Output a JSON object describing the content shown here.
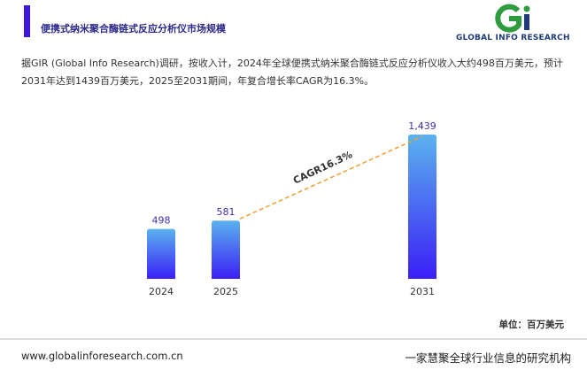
{
  "logo": "GLOBAL INFO RESEARCH",
  "chart_data": {
    "type": "bar",
    "title": "便携式纳米聚合酶链式反应分析仪市场规模",
    "subtitle": "据GIR (Global Info Research)调研，按收入计，2024年全球便携式纳米聚合酶链式反应分析仪收入大约498百万美元，预计2031年达到1439百万美元，2025至2031期间，年复合增长率CAGR为16.3%。",
    "categories": [
      "2024",
      "2025",
      "2031"
    ],
    "values": [
      498,
      581,
      1439
    ],
    "value_labels": [
      "498",
      "581",
      "1,439"
    ],
    "gradient": [
      "#5bb2ef",
      "#3a1ff6"
    ],
    "annotation": "CAGR16.3%",
    "unit_label": "单位：百万美元"
  },
  "footer": {
    "url": "www.globalinforesearch.com.cn",
    "slogan": "一家慧聚全球行业信息的研究机构"
  }
}
